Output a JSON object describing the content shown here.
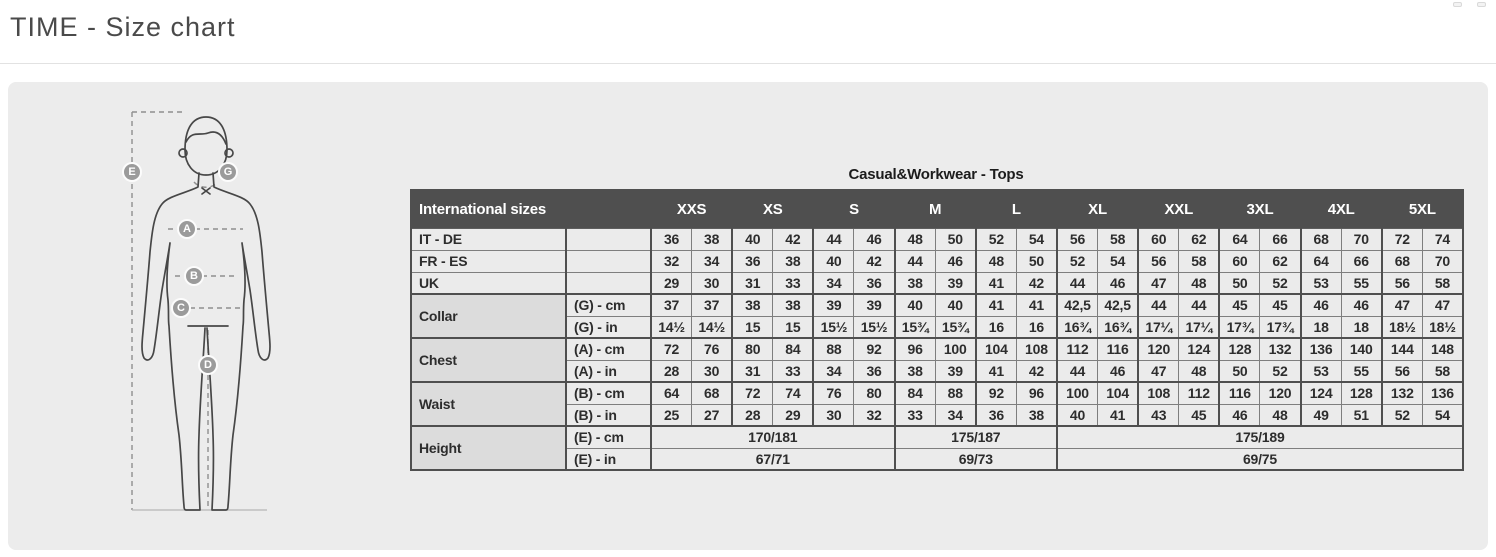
{
  "page": {
    "title": "TIME - Size chart"
  },
  "figure": {
    "markers": {
      "E": "E",
      "G": "G",
      "A": "A",
      "B": "B",
      "C": "C",
      "D": "D"
    }
  },
  "table": {
    "caption": "Casual&Workwear - Tops",
    "header": {
      "corner": "International sizes",
      "sizes": [
        "XXS",
        "XS",
        "S",
        "M",
        "L",
        "XL",
        "XXL",
        "3XL",
        "4XL",
        "5XL"
      ]
    },
    "rows": [
      {
        "type": "simple",
        "label": "IT - DE",
        "values": [
          "36",
          "38",
          "40",
          "42",
          "44",
          "46",
          "48",
          "50",
          "52",
          "54",
          "56",
          "58",
          "60",
          "62",
          "64",
          "66",
          "68",
          "70",
          "72",
          "74"
        ]
      },
      {
        "type": "simple",
        "label": "FR - ES",
        "values": [
          "32",
          "34",
          "36",
          "38",
          "40",
          "42",
          "44",
          "46",
          "48",
          "50",
          "52",
          "54",
          "56",
          "58",
          "60",
          "62",
          "64",
          "66",
          "68",
          "70"
        ]
      },
      {
        "type": "simple",
        "label": "UK",
        "values": [
          "29",
          "30",
          "31",
          "33",
          "34",
          "36",
          "38",
          "39",
          "41",
          "42",
          "44",
          "46",
          "47",
          "48",
          "50",
          "52",
          "53",
          "55",
          "56",
          "58"
        ]
      },
      {
        "type": "group",
        "label": "Collar",
        "subrows": [
          {
            "unit": "(G) - cm",
            "values": [
              "37",
              "37",
              "38",
              "38",
              "39",
              "39",
              "40",
              "40",
              "41",
              "41",
              "42,5",
              "42,5",
              "44",
              "44",
              "45",
              "45",
              "46",
              "46",
              "47",
              "47"
            ]
          },
          {
            "unit": "(G)  - in",
            "values": [
              "14½",
              "14½",
              "15",
              "15",
              "15½",
              "15½",
              "15¾",
              "15¾",
              "16",
              "16",
              "16¾",
              "16¾",
              "17¼",
              "17¼",
              "17¾",
              "17¾",
              "18",
              "18",
              "18½",
              "18½"
            ]
          }
        ]
      },
      {
        "type": "group",
        "label": "Chest",
        "subrows": [
          {
            "unit": "(A) - cm",
            "values": [
              "72",
              "76",
              "80",
              "84",
              "88",
              "92",
              "96",
              "100",
              "104",
              "108",
              "112",
              "116",
              "120",
              "124",
              "128",
              "132",
              "136",
              "140",
              "144",
              "148"
            ]
          },
          {
            "unit": "(A) - in",
            "values": [
              "28",
              "30",
              "31",
              "33",
              "34",
              "36",
              "38",
              "39",
              "41",
              "42",
              "44",
              "46",
              "47",
              "48",
              "50",
              "52",
              "53",
              "55",
              "56",
              "58"
            ]
          }
        ]
      },
      {
        "type": "group",
        "label": "Waist",
        "subrows": [
          {
            "unit": "(B) - cm",
            "values": [
              "64",
              "68",
              "72",
              "74",
              "76",
              "80",
              "84",
              "88",
              "92",
              "96",
              "100",
              "104",
              "108",
              "112",
              "116",
              "120",
              "124",
              "128",
              "132",
              "136"
            ]
          },
          {
            "unit": "(B) - in",
            "values": [
              "25",
              "27",
              "28",
              "29",
              "30",
              "32",
              "33",
              "34",
              "36",
              "38",
              "40",
              "41",
              "43",
              "45",
              "46",
              "48",
              "49",
              "51",
              "52",
              "54"
            ]
          }
        ]
      },
      {
        "type": "group",
        "label": "Height",
        "subrows": [
          {
            "unit": "(E) - cm",
            "spans": [
              {
                "cols": 6,
                "value": "170/181"
              },
              {
                "cols": 4,
                "value": "175/187"
              },
              {
                "cols": 10,
                "value": "175/189"
              }
            ]
          },
          {
            "unit": "(E) - in",
            "spans": [
              {
                "cols": 6,
                "value": "67/71"
              },
              {
                "cols": 4,
                "value": "69/73"
              },
              {
                "cols": 10,
                "value": "69/75"
              }
            ]
          }
        ]
      }
    ]
  },
  "colors": {
    "header_bg": "#4f4f4f",
    "cell_bg": "#ebebeb",
    "group_label_bg": "#dcdcdc",
    "panel_bg": "#ececec",
    "border_dark": "#4f4f4f",
    "marker_bg": "#9b9b9b"
  }
}
